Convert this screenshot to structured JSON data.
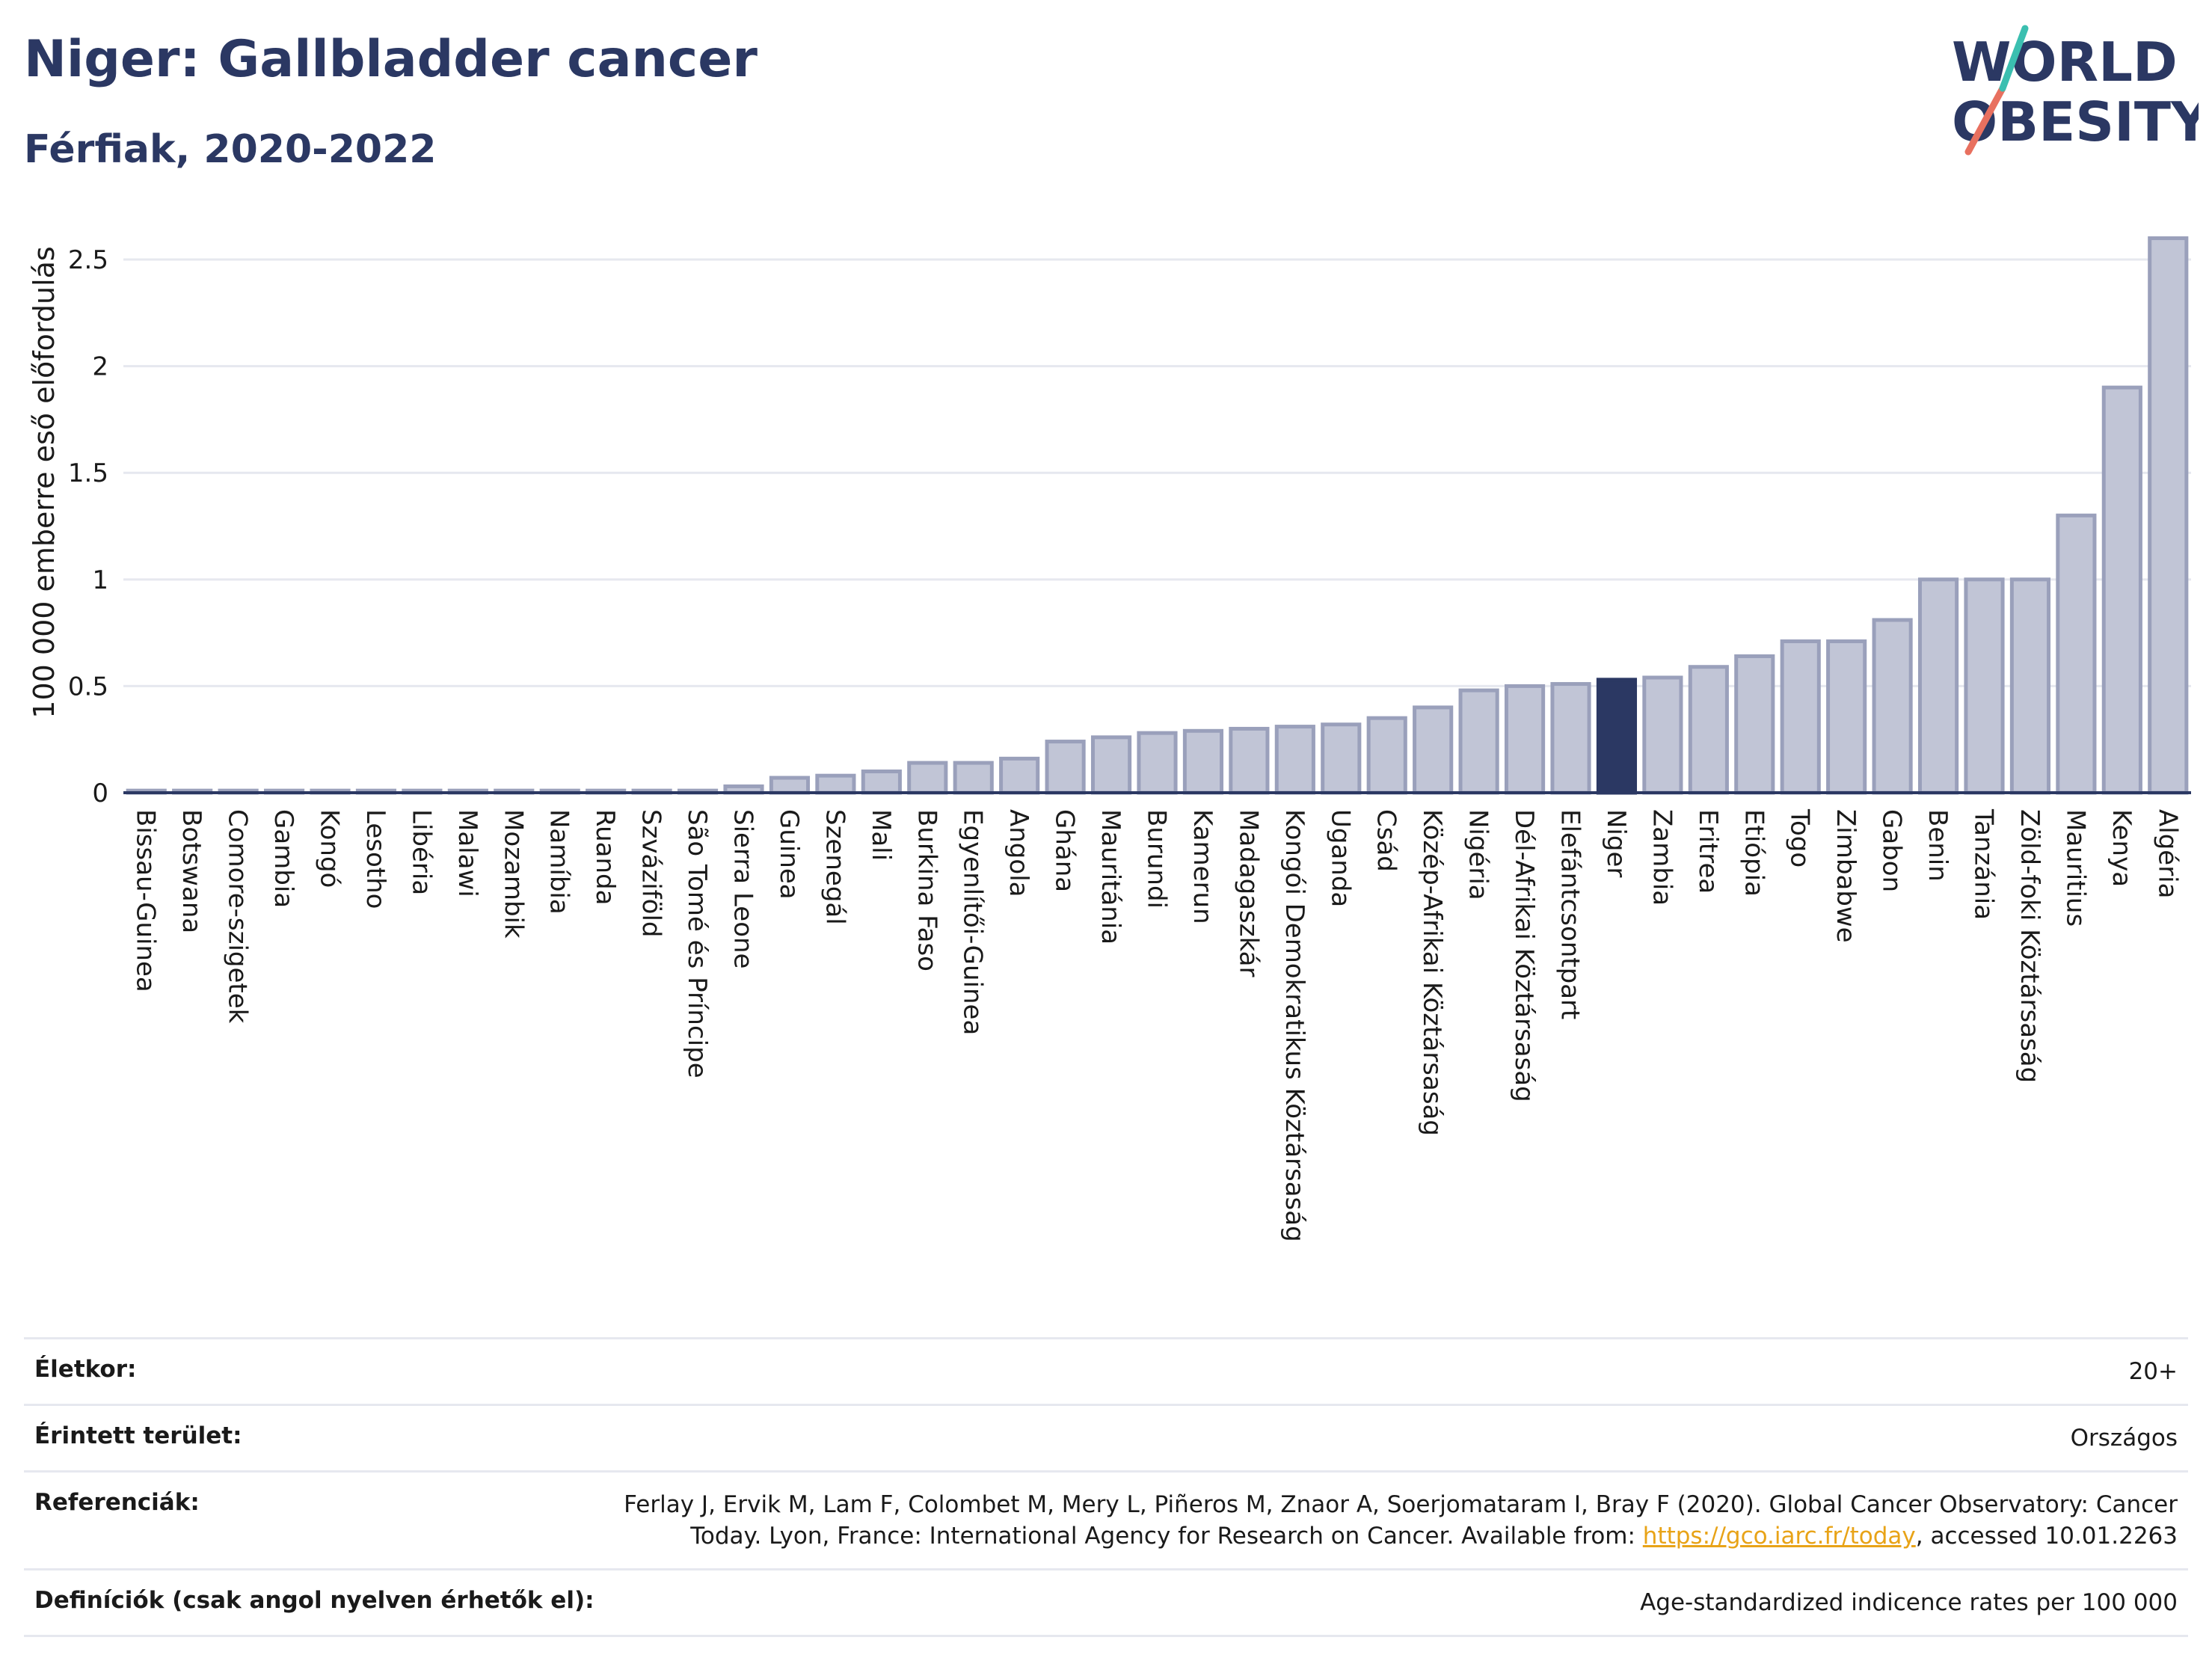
{
  "header": {
    "title": "Niger: Gallbladder cancer",
    "subtitle": "Férfiak, 2020-2022"
  },
  "logo": {
    "line1": "WORLD",
    "line2": "OBESITY",
    "colors": {
      "text": "#2b3863",
      "slash_red": "#e8705f",
      "slash_teal": "#3bbfb0"
    }
  },
  "colors": {
    "bar": "#c1c5d6",
    "bar_stroke": "#9aa0bb",
    "highlight": "#2b3863",
    "axis": "#2b3863",
    "grid": "#e6e8ef"
  },
  "chart_data": {
    "type": "bar",
    "ylabel": "100 000 emberre eső előfordulás",
    "ylim": [
      0,
      2.7
    ],
    "yticks": [
      0,
      0.5,
      1,
      1.5,
      2,
      2.5
    ],
    "ytick_labels": [
      "0",
      "0.5",
      "1",
      "1.5",
      "2",
      "2.5"
    ],
    "grid": true,
    "highlight": "Niger",
    "categories": [
      "Bissau-Guinea",
      "Botswana",
      "Comore-szigetek",
      "Gambia",
      "Kongó",
      "Lesotho",
      "Libéria",
      "Malawi",
      "Mozambik",
      "Namíbia",
      "Ruanda",
      "Szváziföld",
      "São Tomé és Príncipe",
      "Sierra Leone",
      "Guinea",
      "Szenegál",
      "Mali",
      "Burkina Faso",
      "Egyenlítői-Guinea",
      "Angola",
      "Ghána",
      "Mauritánia",
      "Burundi",
      "Kamerun",
      "Madagaszkár",
      "Kongói Demokratikus Köztársaság",
      "Uganda",
      "Csád",
      "Közép-Afrikai Köztársaság",
      "Nigéria",
      "Dél-Afrikai Köztársaság",
      "Elefántcsontpart",
      "Niger",
      "Zambia",
      "Eritrea",
      "Etiópia",
      "Togo",
      "Zimbabwe",
      "Gabon",
      "Benin",
      "Tanzánia",
      "Zöld-foki Köztársaság",
      "Mauritius",
      "Kenya",
      "Algéria"
    ],
    "values": [
      0.01,
      0.01,
      0.01,
      0.01,
      0.01,
      0.01,
      0.01,
      0.01,
      0.01,
      0.01,
      0.01,
      0.01,
      0.01,
      0.03,
      0.07,
      0.08,
      0.1,
      0.14,
      0.14,
      0.16,
      0.24,
      0.26,
      0.28,
      0.29,
      0.3,
      0.31,
      0.32,
      0.35,
      0.4,
      0.48,
      0.5,
      0.51,
      0.53,
      0.54,
      0.59,
      0.64,
      0.71,
      0.71,
      0.81,
      1.0,
      1.0,
      1.0,
      1.3,
      1.9,
      2.6
    ]
  },
  "info": {
    "rows": [
      {
        "label": "Életkor:",
        "value": "20+"
      },
      {
        "label": "Érintett terület:",
        "value": "Országos"
      },
      {
        "label": "Referenciák:",
        "value": "Ferlay J, Ervik M, Lam F, Colombet M, Mery L, Piñeros M, Znaor A, Soerjomataram I, Bray F (2020). Global Cancer Observatory: Cancer Today. Lyon, France: International Agency for Research on Cancer. Available from: ",
        "link": "https://gco.iarc.fr/today",
        "suffix": ", accessed 10.01.2263"
      },
      {
        "label": "Definíciók (csak angol nyelven érhetők el):",
        "value": "Age-standardized indicence rates per 100 000"
      }
    ]
  }
}
